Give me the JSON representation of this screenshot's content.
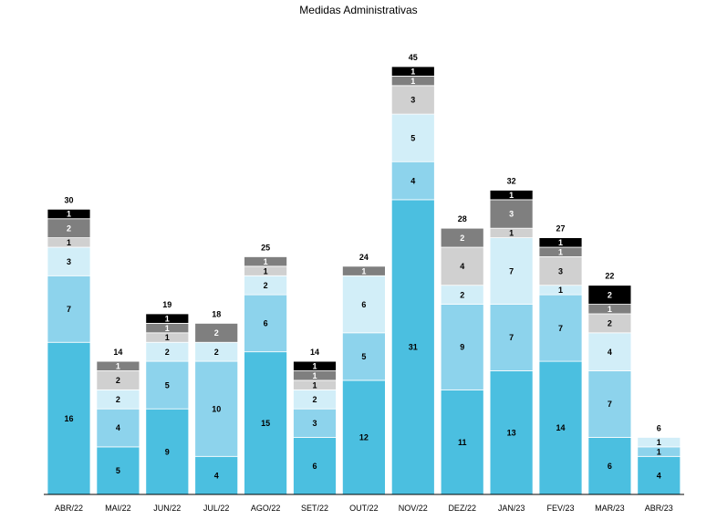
{
  "chart_data": {
    "type": "bar",
    "stacked": true,
    "title": "Medidas Administrativas",
    "xlabel": "",
    "ylabel": "",
    "ylim": [
      0,
      45
    ],
    "grid": false,
    "legend": "none",
    "categories": [
      "ABR/22",
      "MAI/22",
      "JUN/22",
      "JUL/22",
      "AGO/22",
      "SET/22",
      "OUT/22",
      "NOV/22",
      "DEZ/22",
      "JAN/23",
      "FEV/23",
      "MAR/23",
      "ABR/23"
    ],
    "totals": [
      30,
      14,
      19,
      18,
      25,
      14,
      24,
      45,
      28,
      32,
      27,
      22,
      6
    ],
    "series": [
      {
        "color": "#4bbfe0",
        "labelColor": "#000000",
        "values": [
          16,
          5,
          9,
          4,
          15,
          6,
          12,
          31,
          11,
          13,
          14,
          6,
          4
        ]
      },
      {
        "color": "#8dd3ec",
        "labelColor": "#000000",
        "values": [
          7,
          4,
          5,
          10,
          6,
          3,
          5,
          4,
          9,
          7,
          7,
          7,
          1
        ]
      },
      {
        "color": "#d2eef8",
        "labelColor": "#000000",
        "values": [
          3,
          2,
          2,
          2,
          2,
          2,
          6,
          5,
          2,
          7,
          1,
          4,
          1
        ]
      },
      {
        "color": "#d0d0d0",
        "labelColor": "#000000",
        "values": [
          1,
          2,
          1,
          0,
          1,
          1,
          0,
          3,
          4,
          1,
          3,
          2,
          0
        ]
      },
      {
        "color": "#7f7f7f",
        "labelColor": "#ffffff",
        "values": [
          2,
          1,
          1,
          2,
          1,
          1,
          1,
          1,
          2,
          3,
          1,
          1,
          0
        ]
      },
      {
        "color": "#000000",
        "labelColor": "#ffffff",
        "values": [
          1,
          0,
          1,
          0,
          0,
          1,
          0,
          1,
          0,
          1,
          1,
          2,
          0
        ]
      }
    ]
  }
}
